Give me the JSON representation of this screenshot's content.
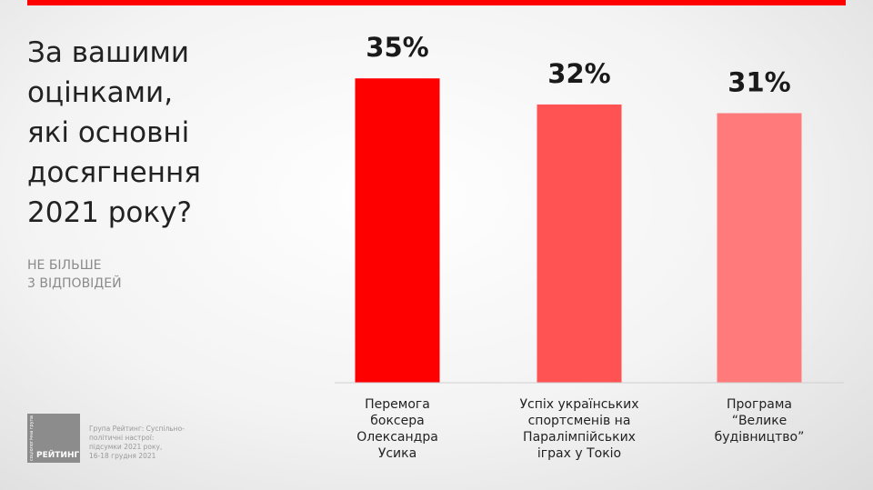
{
  "question": "За вашими\nоцінками,\nякі основні\nдосягнення\n2021 року?",
  "note": "НЕ БІЛЬШЕ\n3 ВІДПОВІДЕЙ",
  "logo": {
    "vertical_text": "соціологічна група",
    "name": "РЕЙТИНГ"
  },
  "source": "Група Рейтинг: Суспільно-\nполітичні настрої:\nпідсумки 2021 року,\n16-18 грудня 2021",
  "colors": {
    "accent": "#ff0000",
    "bars": [
      "#ff0000",
      "#ff5252",
      "#ff7b7b"
    ]
  },
  "chart_data": {
    "type": "bar",
    "categories": [
      "Перемога\nбоксера\nОлександра\nУсика",
      "Успіх українських\nспортсменів на\nПаралімпійських\nіграх у Токіо",
      "Програма\n“Велике\nбудівництво”"
    ],
    "values": [
      35,
      32,
      31
    ],
    "value_labels": [
      "35%",
      "32%",
      "31%"
    ],
    "ylim": [
      0,
      40
    ],
    "grid": false
  }
}
